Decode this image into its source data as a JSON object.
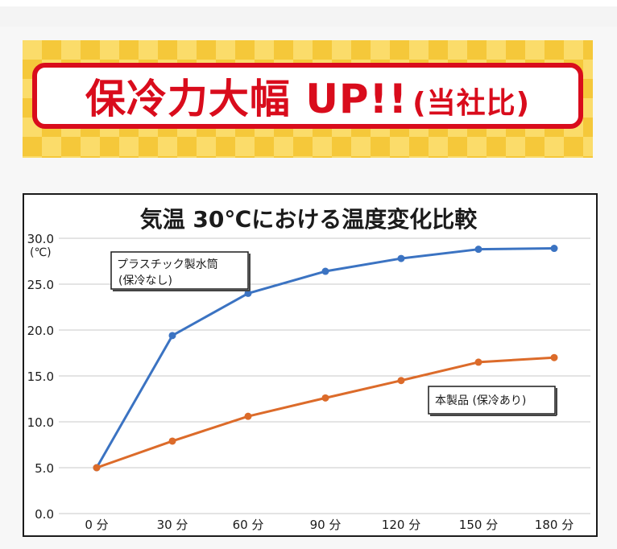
{
  "banner": {
    "headline": "保冷力大幅 UP!!",
    "note": "(当社比)"
  },
  "colors": {
    "banner_red": "#d90c1c",
    "banner_yellow": "#f5c83a",
    "series_blue": "#3b73c2",
    "series_orange": "#dc6b2a"
  },
  "chart_data": {
    "type": "line",
    "title": "気温 30℃における温度変化比較",
    "ylabel": "(℃)",
    "ylim": [
      0,
      30
    ],
    "yticks": [
      "0.0",
      "5.0",
      "10.0",
      "15.0",
      "20.0",
      "25.0",
      "30.0"
    ],
    "x": [
      0,
      30,
      60,
      90,
      120,
      150,
      180
    ],
    "xtick_labels": [
      "0 分",
      "30 分",
      "60 分",
      "90 分",
      "120 分",
      "150 分",
      "180 分"
    ],
    "grid": true,
    "series": [
      {
        "name": "プラスチック製水筒 (保冷なし)",
        "label_line1": "プラスチック製水筒",
        "label_line2": "(保冷なし)",
        "color": "#3b73c2",
        "values": [
          5.0,
          19.4,
          24.0,
          26.4,
          27.8,
          28.8,
          28.9
        ]
      },
      {
        "name": "本製品 (保冷あり)",
        "label_line1": "本製品 (保冷あり)",
        "color": "#dc6b2a",
        "values": [
          5.0,
          7.9,
          10.6,
          12.6,
          14.5,
          16.5,
          17.0
        ]
      }
    ]
  }
}
